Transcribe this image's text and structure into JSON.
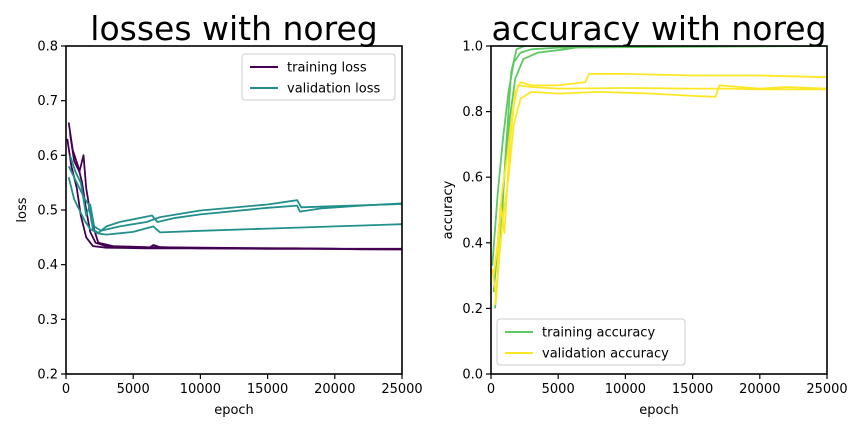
{
  "chart_data": [
    {
      "type": "line",
      "title": "losses with noreg",
      "xlabel": "epoch",
      "ylabel": "loss",
      "xlim": [
        0,
        25000
      ],
      "ylim": [
        0.2,
        0.8
      ],
      "xticks": [
        "0",
        "5000",
        "10000",
        "15000",
        "20000",
        "25000"
      ],
      "yticks": [
        "0.2",
        "0.3",
        "0.4",
        "0.5",
        "0.6",
        "0.7",
        "0.8"
      ],
      "legend_position": "top-right",
      "grid": false,
      "series": [
        {
          "name": "training loss",
          "color": "#440154",
          "runs": [
            [
              [
                200,
                0.66
              ],
              [
                500,
                0.61
              ],
              [
                900,
                0.58
              ],
              [
                1200,
                0.55
              ],
              [
                1500,
                0.5
              ],
              [
                1800,
                0.46
              ],
              [
                2200,
                0.44
              ],
              [
                3000,
                0.434
              ],
              [
                5000,
                0.432
              ],
              [
                6200,
                0.431
              ],
              [
                6500,
                0.436
              ],
              [
                7000,
                0.432
              ],
              [
                10000,
                0.43
              ],
              [
                15000,
                0.429
              ],
              [
                20000,
                0.429
              ],
              [
                25000,
                0.428
              ]
            ],
            [
              [
                300,
                0.64
              ],
              [
                600,
                0.59
              ],
              [
                1000,
                0.57
              ],
              [
                1300,
                0.6
              ],
              [
                1500,
                0.54
              ],
              [
                1900,
                0.48
              ],
              [
                2400,
                0.44
              ],
              [
                3500,
                0.434
              ],
              [
                6000,
                0.432
              ],
              [
                10000,
                0.431
              ],
              [
                15000,
                0.43
              ],
              [
                20000,
                0.429
              ],
              [
                25000,
                0.429
              ]
            ],
            [
              [
                100,
                0.63
              ],
              [
                400,
                0.58
              ],
              [
                800,
                0.54
              ],
              [
                1100,
                0.49
              ],
              [
                1500,
                0.45
              ],
              [
                2000,
                0.434
              ],
              [
                3000,
                0.431
              ],
              [
                6000,
                0.43
              ],
              [
                10000,
                0.43
              ],
              [
                17000,
                0.43
              ],
              [
                20000,
                0.429
              ],
              [
                22000,
                0.428
              ],
              [
                25000,
                0.428
              ]
            ]
          ]
        },
        {
          "name": "validation loss",
          "color": "#21908d",
          "runs": [
            [
              [
                200,
                0.58
              ],
              [
                600,
                0.56
              ],
              [
                1000,
                0.54
              ],
              [
                1400,
                0.52
              ],
              [
                1700,
                0.51
              ],
              [
                2000,
                0.465
              ],
              [
                2400,
                0.458
              ],
              [
                3000,
                0.47
              ],
              [
                4000,
                0.478
              ],
              [
                6400,
                0.49
              ],
              [
                6800,
                0.478
              ],
              [
                8000,
                0.485
              ],
              [
                10000,
                0.492
              ],
              [
                15000,
                0.504
              ],
              [
                17200,
                0.508
              ],
              [
                17400,
                0.497
              ],
              [
                19000,
                0.503
              ],
              [
                22000,
                0.508
              ],
              [
                25000,
                0.512
              ]
            ],
            [
              [
                300,
                0.6
              ],
              [
                700,
                0.57
              ],
              [
                1100,
                0.55
              ],
              [
                1500,
                0.49
              ],
              [
                1800,
                0.51
              ],
              [
                2100,
                0.47
              ],
              [
                2600,
                0.462
              ],
              [
                4000,
                0.47
              ],
              [
                6000,
                0.478
              ],
              [
                7000,
                0.487
              ],
              [
                10000,
                0.499
              ],
              [
                15000,
                0.51
              ],
              [
                17200,
                0.518
              ],
              [
                17500,
                0.505
              ],
              [
                20000,
                0.507
              ],
              [
                25000,
                0.511
              ]
            ],
            [
              [
                200,
                0.56
              ],
              [
                600,
                0.52
              ],
              [
                1000,
                0.5
              ],
              [
                1400,
                0.48
              ],
              [
                1800,
                0.465
              ],
              [
                2400,
                0.457
              ],
              [
                3000,
                0.455
              ],
              [
                5000,
                0.46
              ],
              [
                6500,
                0.47
              ],
              [
                7000,
                0.459
              ],
              [
                10000,
                0.462
              ],
              [
                15000,
                0.466
              ],
              [
                20000,
                0.47
              ],
              [
                25000,
                0.474
              ]
            ]
          ]
        }
      ]
    },
    {
      "type": "line",
      "title": "accuracy with noreg",
      "xlabel": "epoch",
      "ylabel": "accuracy",
      "xlim": [
        0,
        25000
      ],
      "ylim": [
        0.0,
        1.0
      ],
      "xticks": [
        "0",
        "5000",
        "10000",
        "15000",
        "20000",
        "25000"
      ],
      "yticks": [
        "0.0",
        "0.2",
        "0.4",
        "0.6",
        "0.8",
        "1.0"
      ],
      "legend_position": "bottom-left",
      "grid": false,
      "series": [
        {
          "name": "training accuracy",
          "color": "#5ec962",
          "runs": [
            [
              [
                100,
                0.33
              ],
              [
                500,
                0.55
              ],
              [
                900,
                0.72
              ],
              [
                1300,
                0.86
              ],
              [
                1700,
                0.95
              ],
              [
                2200,
                0.98
              ],
              [
                3000,
                0.99
              ],
              [
                5000,
                0.995
              ],
              [
                25000,
                1.0
              ]
            ],
            [
              [
                200,
                0.25
              ],
              [
                600,
                0.45
              ],
              [
                1000,
                0.6
              ],
              [
                1400,
                0.78
              ],
              [
                1800,
                0.9
              ],
              [
                2400,
                0.96
              ],
              [
                3500,
                0.98
              ],
              [
                5500,
                0.99
              ],
              [
                7000,
                1.0
              ],
              [
                25000,
                1.0
              ]
            ],
            [
              [
                300,
                0.2
              ],
              [
                700,
                0.4
              ],
              [
                1100,
                0.68
              ],
              [
                1500,
                0.92
              ],
              [
                1900,
                0.99
              ],
              [
                2500,
                1.0
              ],
              [
                25000,
                1.0
              ]
            ]
          ]
        },
        {
          "name": "validation accuracy",
          "color": "#fde725",
          "runs": [
            [
              [
                100,
                0.32
              ],
              [
                400,
                0.23
              ],
              [
                700,
                0.52
              ],
              [
                1000,
                0.43
              ],
              [
                1400,
                0.7
              ],
              [
                1800,
                0.86
              ],
              [
                2200,
                0.89
              ],
              [
                3000,
                0.88
              ],
              [
                5000,
                0.88
              ],
              [
                7000,
                0.89
              ],
              [
                7300,
                0.915
              ],
              [
                10000,
                0.915
              ],
              [
                15000,
                0.91
              ],
              [
                20000,
                0.91
              ],
              [
                25000,
                0.905
              ]
            ],
            [
              [
                200,
                0.3
              ],
              [
                500,
                0.4
              ],
              [
                800,
                0.55
              ],
              [
                1200,
                0.66
              ],
              [
                1600,
                0.8
              ],
              [
                2000,
                0.88
              ],
              [
                3000,
                0.875
              ],
              [
                5000,
                0.87
              ],
              [
                10000,
                0.872
              ],
              [
                15000,
                0.87
              ],
              [
                17500,
                0.87
              ],
              [
                20000,
                0.868
              ],
              [
                25000,
                0.868
              ]
            ],
            [
              [
                300,
                0.21
              ],
              [
                600,
                0.35
              ],
              [
                900,
                0.48
              ],
              [
                1300,
                0.6
              ],
              [
                1700,
                0.76
              ],
              [
                2200,
                0.84
              ],
              [
                3000,
                0.86
              ],
              [
                5000,
                0.855
              ],
              [
                8000,
                0.86
              ],
              [
                12000,
                0.855
              ],
              [
                15000,
                0.848
              ],
              [
                16700,
                0.845
              ],
              [
                17000,
                0.88
              ],
              [
                20000,
                0.87
              ],
              [
                22000,
                0.875
              ],
              [
                25000,
                0.87
              ]
            ]
          ]
        }
      ]
    }
  ]
}
